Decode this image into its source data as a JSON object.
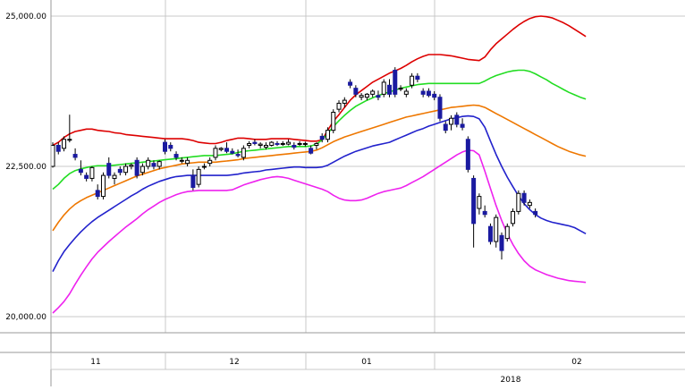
{
  "chart_data": {
    "type": "candlestick",
    "ylim": [
      20000,
      25000
    ],
    "y_ticks": [
      "25,000.00",
      "22,500.00",
      "20,000.00"
    ],
    "y_tick_values": [
      25000,
      22500,
      20000
    ],
    "month_labels": [
      "11",
      "12",
      "01",
      "02"
    ],
    "year_label": "2018",
    "grid": true,
    "colors": {
      "bull_body": "#ffffff",
      "bear_body": "#1a1aa0",
      "wick": "#000000",
      "grid": "#c8c8c8"
    },
    "bands": [
      {
        "color": "#dd0000",
        "values": [
          22850,
          22900,
          22980,
          23040,
          23080,
          23100,
          23120,
          23120,
          23100,
          23090,
          23080,
          23060,
          23050,
          23030,
          23020,
          23010,
          23000,
          22990,
          22980,
          22970,
          22960,
          22960,
          22960,
          22960,
          22950,
          22930,
          22900,
          22890,
          22880,
          22880,
          22900,
          22930,
          22950,
          22970,
          22970,
          22960,
          22950,
          22950,
          22950,
          22960,
          22960,
          22960,
          22960,
          22950,
          22940,
          22930,
          22920,
          22920,
          22940,
          23100,
          23250,
          23360,
          23480,
          23600,
          23690,
          23760,
          23830,
          23900,
          23950,
          24000,
          24050,
          24090,
          24130,
          24180,
          24240,
          24290,
          24330,
          24360,
          24360,
          24360,
          24350,
          24340,
          24320,
          24300,
          24280,
          24270,
          24260,
          24320,
          24440,
          24540,
          24620,
          24700,
          24780,
          24850,
          24910,
          24960,
          24990,
          25000,
          24990,
          24970,
          24930,
          24890,
          24840,
          24780,
          24720,
          24660
        ]
      },
      {
        "color": "#22dd22",
        "values": [
          22120,
          22200,
          22300,
          22380,
          22430,
          22460,
          22480,
          22500,
          22510,
          22510,
          22510,
          22520,
          22530,
          22540,
          22550,
          22560,
          22570,
          22580,
          22590,
          22600,
          22610,
          22620,
          22630,
          22640,
          22650,
          22660,
          22670,
          22680,
          22680,
          22680,
          22690,
          22700,
          22710,
          22730,
          22750,
          22760,
          22770,
          22780,
          22790,
          22800,
          22810,
          22820,
          22830,
          22830,
          22830,
          22830,
          22840,
          22870,
          22940,
          23050,
          23160,
          23260,
          23350,
          23430,
          23500,
          23550,
          23600,
          23640,
          23680,
          23710,
          23740,
          23770,
          23800,
          23820,
          23840,
          23860,
          23870,
          23880,
          23880,
          23880,
          23880,
          23880,
          23880,
          23880,
          23880,
          23880,
          23880,
          23920,
          23970,
          24010,
          24040,
          24070,
          24090,
          24100,
          24100,
          24080,
          24040,
          23990,
          23940,
          23880,
          23830,
          23780,
          23730,
          23690,
          23650,
          23620
        ]
      },
      {
        "color": "#ee7700",
        "values": [
          21430,
          21570,
          21690,
          21790,
          21870,
          21930,
          21980,
          22020,
          22060,
          22100,
          22140,
          22180,
          22220,
          22260,
          22300,
          22340,
          22370,
          22400,
          22430,
          22460,
          22480,
          22500,
          22520,
          22540,
          22550,
          22560,
          22570,
          22570,
          22570,
          22570,
          22580,
          22590,
          22600,
          22610,
          22630,
          22640,
          22650,
          22660,
          22670,
          22680,
          22690,
          22700,
          22710,
          22720,
          22730,
          22740,
          22750,
          22770,
          22810,
          22860,
          22910,
          22950,
          22990,
          23020,
          23050,
          23080,
          23110,
          23140,
          23170,
          23200,
          23230,
          23260,
          23290,
          23320,
          23340,
          23360,
          23380,
          23400,
          23420,
          23440,
          23460,
          23480,
          23490,
          23500,
          23510,
          23520,
          23510,
          23480,
          23430,
          23380,
          23330,
          23280,
          23230,
          23180,
          23130,
          23080,
          23030,
          22980,
          22930,
          22880,
          22830,
          22790,
          22750,
          22720,
          22690,
          22670
        ]
      },
      {
        "color": "#2222cc",
        "values": [
          20750,
          20930,
          21080,
          21200,
          21310,
          21410,
          21500,
          21580,
          21650,
          21710,
          21770,
          21830,
          21890,
          21950,
          22010,
          22060,
          22120,
          22170,
          22210,
          22250,
          22280,
          22310,
          22330,
          22340,
          22350,
          22350,
          22350,
          22350,
          22350,
          22350,
          22350,
          22350,
          22360,
          22370,
          22390,
          22400,
          22410,
          22420,
          22440,
          22450,
          22460,
          22470,
          22480,
          22490,
          22490,
          22480,
          22480,
          22480,
          22490,
          22520,
          22570,
          22620,
          22670,
          22710,
          22750,
          22780,
          22810,
          22840,
          22860,
          22880,
          22900,
          22940,
          22980,
          23020,
          23060,
          23100,
          23130,
          23170,
          23200,
          23230,
          23260,
          23290,
          23310,
          23330,
          23340,
          23330,
          23290,
          23150,
          22920,
          22700,
          22500,
          22320,
          22160,
          22010,
          21880,
          21780,
          21700,
          21640,
          21600,
          21570,
          21550,
          21530,
          21510,
          21480,
          21430,
          21380
        ]
      },
      {
        "color": "#ee22ee",
        "values": [
          20060,
          20150,
          20250,
          20380,
          20540,
          20690,
          20830,
          20960,
          21070,
          21160,
          21250,
          21330,
          21410,
          21490,
          21560,
          21630,
          21710,
          21780,
          21840,
          21900,
          21950,
          21990,
          22030,
          22060,
          22080,
          22090,
          22100,
          22100,
          22100,
          22100,
          22100,
          22100,
          22110,
          22150,
          22190,
          22220,
          22250,
          22280,
          22300,
          22320,
          22330,
          22320,
          22300,
          22270,
          22240,
          22210,
          22180,
          22150,
          22120,
          22080,
          22020,
          21970,
          21940,
          21930,
          21930,
          21940,
          21970,
          22010,
          22050,
          22080,
          22100,
          22120,
          22140,
          22180,
          22230,
          22280,
          22330,
          22390,
          22450,
          22510,
          22570,
          22630,
          22690,
          22740,
          22770,
          22760,
          22690,
          22420,
          22130,
          21850,
          21600,
          21380,
          21200,
          21050,
          20930,
          20840,
          20780,
          20740,
          20700,
          20670,
          20640,
          20620,
          20600,
          20590,
          20580,
          20570
        ]
      }
    ],
    "candles": [
      [
        0,
        22500,
        22900,
        22480,
        22850
      ],
      [
        1,
        22850,
        22900,
        22700,
        22750
      ],
      [
        2,
        22800,
        23000,
        22750,
        22950
      ],
      [
        3,
        22950,
        23360,
        22900,
        22950
      ],
      [
        4,
        22700,
        22800,
        22600,
        22650
      ],
      [
        5,
        22450,
        22600,
        22350,
        22400
      ],
      [
        6,
        22350,
        22400,
        22250,
        22300
      ],
      [
        7,
        22300,
        22500,
        22250,
        22480
      ],
      [
        8,
        22100,
        22200,
        21950,
        22000
      ],
      [
        9,
        22000,
        22400,
        21950,
        22350
      ],
      [
        10,
        22550,
        22650,
        22300,
        22350
      ],
      [
        11,
        22300,
        22400,
        22200,
        22350
      ],
      [
        12,
        22450,
        22500,
        22350,
        22400
      ],
      [
        13,
        22400,
        22550,
        22350,
        22500
      ],
      [
        14,
        22500,
        22550,
        22450,
        22520
      ],
      [
        15,
        22600,
        22650,
        22300,
        22350
      ],
      [
        16,
        22400,
        22550,
        22350,
        22500
      ],
      [
        17,
        22500,
        22650,
        22450,
        22600
      ],
      [
        18,
        22550,
        22600,
        22450,
        22500
      ],
      [
        19,
        22500,
        22600,
        22450,
        22580
      ],
      [
        20,
        22900,
        22950,
        22700,
        22750
      ],
      [
        21,
        22850,
        22900,
        22750,
        22800
      ],
      [
        22,
        22700,
        22750,
        22600,
        22650
      ],
      [
        23,
        22600,
        22650,
        22550,
        22600
      ],
      [
        24,
        22550,
        22650,
        22500,
        22600
      ],
      [
        25,
        22350,
        22450,
        22100,
        22150
      ],
      [
        26,
        22200,
        22500,
        22150,
        22450
      ],
      [
        27,
        22500,
        22550,
        22450,
        22500
      ],
      [
        28,
        22550,
        22650,
        22500,
        22600
      ],
      [
        29,
        22650,
        22850,
        22600,
        22800
      ],
      [
        30,
        22780,
        22820,
        22750,
        22800
      ],
      [
        31,
        22800,
        22900,
        22720,
        22750
      ],
      [
        32,
        22750,
        22800,
        22700,
        22720
      ],
      [
        33,
        22700,
        22780,
        22650,
        22680
      ],
      [
        34,
        22650,
        22850,
        22600,
        22800
      ],
      [
        35,
        22850,
        22920,
        22800,
        22880
      ],
      [
        36,
        22900,
        22950,
        22850,
        22880
      ],
      [
        37,
        22850,
        22900,
        22800,
        22870
      ],
      [
        38,
        22820,
        22900,
        22780,
        22850
      ],
      [
        39,
        22850,
        22920,
        22830,
        22900
      ],
      [
        40,
        22880,
        22920,
        22840,
        22870
      ],
      [
        41,
        22880,
        22920,
        22840,
        22880
      ],
      [
        42,
        22870,
        22950,
        22850,
        22900
      ],
      [
        43,
        22850,
        22900,
        22780,
        22820
      ],
      [
        44,
        22870,
        22920,
        22840,
        22880
      ],
      [
        45,
        22870,
        22910,
        22830,
        22880
      ],
      [
        46,
        22800,
        22850,
        22700,
        22720
      ],
      [
        47,
        22850,
        22900,
        22780,
        22880
      ],
      [
        48,
        23000,
        23050,
        22900,
        22950
      ],
      [
        49,
        22950,
        23150,
        22900,
        23100
      ],
      [
        50,
        23100,
        23450,
        23050,
        23400
      ],
      [
        51,
        23450,
        23600,
        23400,
        23550
      ],
      [
        52,
        23550,
        23650,
        23480,
        23600
      ],
      [
        53,
        23900,
        23950,
        23800,
        23850
      ],
      [
        54,
        23800,
        23850,
        23650,
        23700
      ],
      [
        55,
        23650,
        23720,
        23600,
        23680
      ],
      [
        56,
        23650,
        23720,
        23600,
        23700
      ],
      [
        57,
        23700,
        23780,
        23650,
        23750
      ],
      [
        58,
        23680,
        23760,
        23600,
        23650
      ],
      [
        59,
        23700,
        23950,
        23650,
        23900
      ],
      [
        60,
        23850,
        23950,
        23650,
        23700
      ],
      [
        61,
        24100,
        24150,
        23650,
        23700
      ],
      [
        62,
        23800,
        23850,
        23750,
        23800
      ],
      [
        63,
        23700,
        23800,
        23650,
        23750
      ],
      [
        64,
        23850,
        24050,
        23800,
        24000
      ],
      [
        65,
        24000,
        24050,
        23900,
        23950
      ],
      [
        66,
        23750,
        23800,
        23650,
        23700
      ],
      [
        67,
        23750,
        23800,
        23650,
        23680
      ],
      [
        68,
        23700,
        23750,
        23600,
        23650
      ],
      [
        69,
        23650,
        23700,
        23250,
        23300
      ],
      [
        70,
        23200,
        23250,
        23050,
        23100
      ],
      [
        71,
        23200,
        23350,
        23100,
        23300
      ],
      [
        72,
        23350,
        23400,
        23150,
        23200
      ],
      [
        73,
        23200,
        23300,
        23100,
        23150
      ],
      [
        74,
        22950,
        23000,
        22400,
        22450
      ],
      [
        75,
        22300,
        22350,
        21150,
        21550
      ],
      [
        76,
        21800,
        22050,
        21700,
        22000
      ],
      [
        77,
        21750,
        21850,
        21650,
        21700
      ],
      [
        78,
        21500,
        21550,
        21200,
        21250
      ],
      [
        79,
        21250,
        21700,
        21150,
        21650
      ],
      [
        80,
        21350,
        21400,
        20950,
        21100
      ],
      [
        81,
        21300,
        21550,
        21250,
        21500
      ],
      [
        82,
        21550,
        21800,
        21500,
        21750
      ],
      [
        83,
        21750,
        22100,
        21700,
        22050
      ],
      [
        84,
        22050,
        22100,
        21850,
        21900
      ],
      [
        85,
        21850,
        21950,
        21800,
        21900
      ],
      [
        86,
        21750,
        21800,
        21650,
        21700
      ]
    ]
  }
}
